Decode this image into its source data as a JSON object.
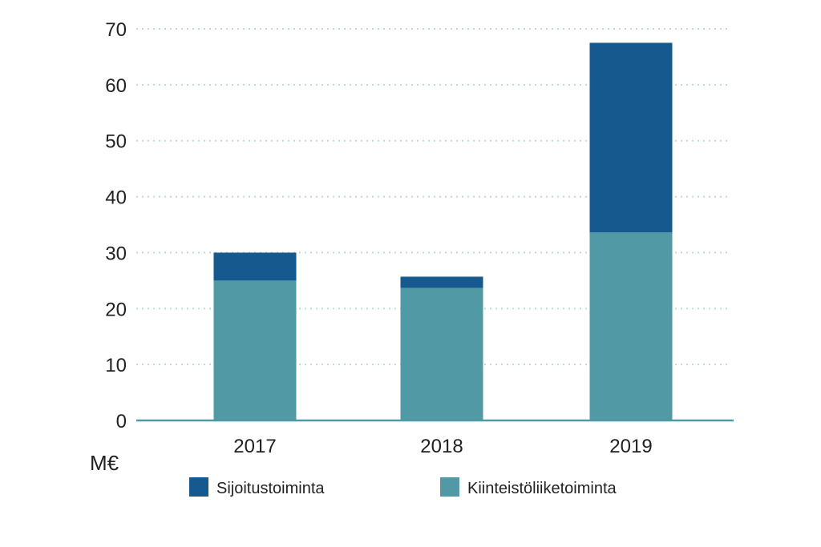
{
  "chart_data": {
    "type": "bar",
    "stacked": true,
    "categories": [
      "2017",
      "2018",
      "2019"
    ],
    "series": [
      {
        "name": "Kiinteistöliiketoiminta",
        "color": "#5199a4",
        "values": [
          25,
          23.7,
          33.6
        ]
      },
      {
        "name": "Sijoitustoiminta",
        "color": "#15598e",
        "values": [
          5,
          2,
          33.9
        ]
      }
    ],
    "ylim": [
      0,
      70
    ],
    "yticks": [
      0,
      10,
      20,
      30,
      40,
      50,
      60,
      70
    ],
    "unit_label": "M€",
    "grid": true,
    "legend": {
      "placement": "bottom",
      "items": [
        {
          "label": "Sijoitustoiminta",
          "color": "#15598e"
        },
        {
          "label": "Kiinteistöliiketoiminta",
          "color": "#5199a4"
        }
      ]
    },
    "axis_color": "#4f9aa6",
    "grid_color": "#b9dcda"
  }
}
